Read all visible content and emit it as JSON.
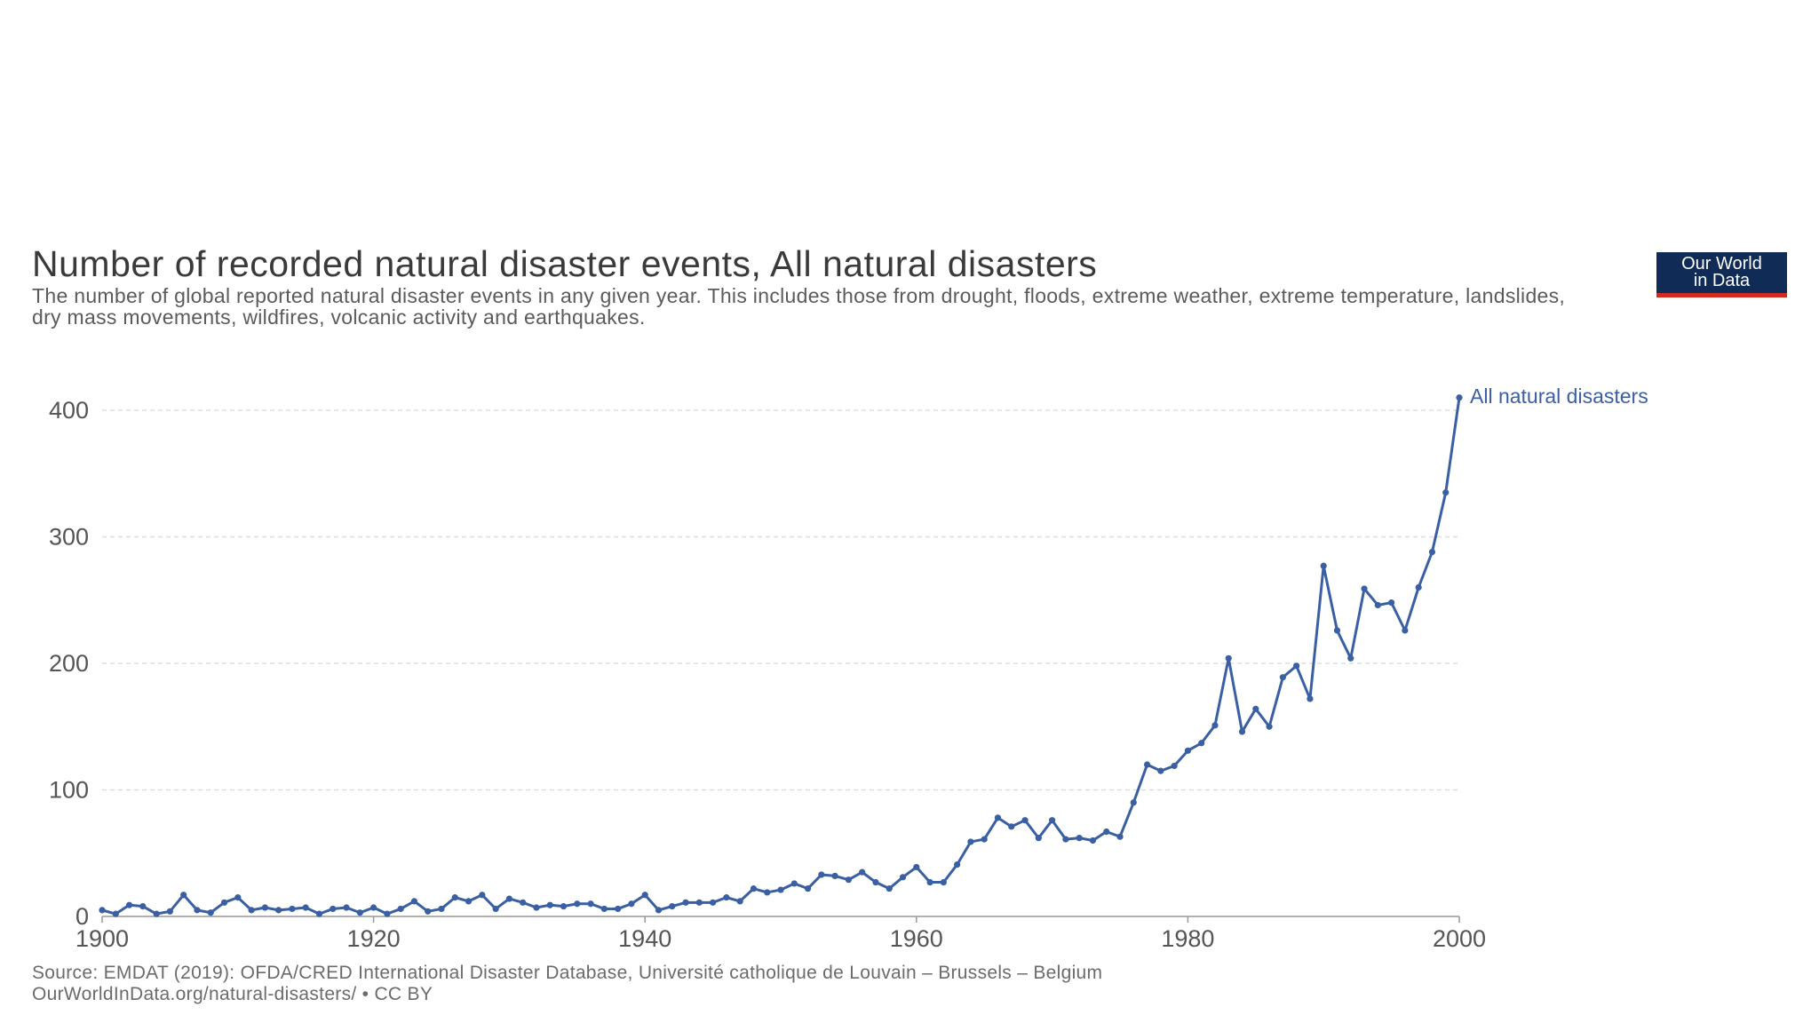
{
  "title": "Number of recorded natural disaster events, All natural disasters",
  "subtitle": "The number of global reported natural disaster events in any given year. This includes those from drought, floods, extreme weather, extreme temperature, landslides, dry mass movements, wildfires, volcanic activity and earthquakes.",
  "logo": {
    "line1": "Our World",
    "line2": "in Data"
  },
  "source": {
    "line1": "Source: EMDAT (2019): OFDA/CRED International Disaster Database, Université catholique de Louvain – Brussels – Belgium",
    "line2": "OurWorldInData.org/natural-disasters/ • CC BY"
  },
  "colors": {
    "series": "#3a5fa3",
    "grid": "#dddddd",
    "axis_text": "#555555",
    "logo_bg": "#0f2b56",
    "logo_accent": "#d42b20"
  },
  "chart_data": {
    "type": "line",
    "title": "Number of recorded natural disaster events, All natural disasters",
    "xlim": [
      1900,
      2000
    ],
    "ylim": [
      0,
      400
    ],
    "x_ticks": [
      "1900",
      "1920",
      "1940",
      "1960",
      "1980",
      "2000"
    ],
    "y_ticks": [
      "0",
      "100",
      "200",
      "300",
      "400"
    ],
    "grid": "horizontal dashed",
    "legend": "inline label at end of line",
    "x": [
      1900,
      1901,
      1902,
      1903,
      1904,
      1905,
      1906,
      1907,
      1908,
      1909,
      1910,
      1911,
      1912,
      1913,
      1914,
      1915,
      1916,
      1917,
      1918,
      1919,
      1920,
      1921,
      1922,
      1923,
      1924,
      1925,
      1926,
      1927,
      1928,
      1929,
      1930,
      1931,
      1932,
      1933,
      1934,
      1935,
      1936,
      1937,
      1938,
      1939,
      1940,
      1941,
      1942,
      1943,
      1944,
      1945,
      1946,
      1947,
      1948,
      1949,
      1950,
      1951,
      1952,
      1953,
      1954,
      1955,
      1956,
      1957,
      1958,
      1959,
      1960,
      1961,
      1962,
      1963,
      1964,
      1965,
      1966,
      1967,
      1968,
      1969,
      1970,
      1971,
      1972,
      1973,
      1974,
      1975,
      1976,
      1977,
      1978,
      1979,
      1980,
      1981,
      1982,
      1983,
      1984,
      1985,
      1986,
      1987,
      1988,
      1989,
      1990,
      1991,
      1992,
      1993,
      1994,
      1995,
      1996,
      1997,
      1998,
      1999,
      2000
    ],
    "series": [
      {
        "name": "All natural disasters",
        "values": [
          5,
          2,
          9,
          8,
          2,
          4,
          17,
          5,
          3,
          11,
          15,
          5,
          7,
          5,
          6,
          7,
          2,
          6,
          7,
          3,
          7,
          2,
          6,
          12,
          4,
          6,
          15,
          12,
          17,
          6,
          14,
          11,
          7,
          9,
          8,
          10,
          10,
          6,
          6,
          10,
          17,
          5,
          8,
          11,
          11,
          11,
          15,
          12,
          22,
          19,
          21,
          26,
          22,
          33,
          32,
          29,
          35,
          27,
          22,
          31,
          39,
          27,
          27,
          41,
          59,
          61,
          78,
          71,
          76,
          62,
          76,
          61,
          62,
          60,
          67,
          63,
          90,
          120,
          115,
          119,
          131,
          137,
          151,
          204,
          146,
          164,
          150,
          189,
          198,
          172,
          277,
          226,
          204,
          259,
          246,
          248,
          226,
          260,
          288,
          335,
          410
        ]
      }
    ]
  }
}
